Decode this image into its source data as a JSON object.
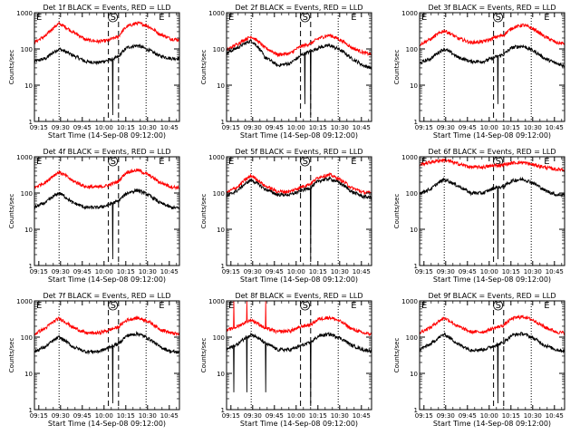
{
  "figure": {
    "y_label": "Counts/sec",
    "x_label": "Start Time (14-Sep-08 09:12:00)",
    "x_ticks": [
      "09:15",
      "09:30",
      "09:45",
      "10:00",
      "10:15",
      "10:30",
      "10:45"
    ],
    "y_ticks": [
      "1",
      "10",
      "100",
      "1000"
    ],
    "marker_labels": {
      "start": "E",
      "middle": "S",
      "end": "E"
    },
    "colors": {
      "events": "#000000",
      "lld": "#ff0000",
      "axes": "#000000"
    },
    "legend_text": "BLACK = Events, RED = LLD"
  },
  "chart_data": [
    {
      "type": "line",
      "title": "Det 1f BLACK = Events, RED = LLD",
      "xlabel": "Start Time (14-Sep-08 09:12:00)",
      "ylabel": "Counts/sec",
      "x_unit": "minutes after 09:12:00",
      "xlim": [
        0,
        100
      ],
      "ylim": [
        1,
        1000
      ],
      "y_scale": "log",
      "vlines_dotted": [
        17,
        77
      ],
      "vlines_dashed": [
        51,
        58
      ],
      "series": [
        {
          "name": "Events",
          "color": "#000000",
          "x": [
            0,
            8,
            17,
            26,
            35,
            44,
            50,
            52,
            58,
            64,
            71,
            77,
            86,
            94,
            100
          ],
          "y": [
            45,
            55,
            100,
            68,
            45,
            42,
            48,
            50,
            60,
            110,
            125,
            100,
            65,
            55,
            55
          ]
        },
        {
          "name": "LLD",
          "color": "#ff0000",
          "x": [
            0,
            8,
            17,
            26,
            35,
            44,
            50,
            52,
            58,
            64,
            71,
            77,
            86,
            94,
            100
          ],
          "y": [
            150,
            230,
            500,
            300,
            180,
            160,
            170,
            180,
            220,
            420,
            520,
            450,
            260,
            190,
            180
          ]
        }
      ],
      "dips": [
        {
          "series": "Events",
          "x": 54,
          "y": 1.5
        }
      ]
    },
    {
      "type": "line",
      "title": "Det 2f BLACK = Events, RED = LLD",
      "xlabel": "Start Time (14-Sep-08 09:12:00)",
      "ylabel": "Counts/sec",
      "x_unit": "minutes after 09:12:00",
      "xlim": [
        0,
        100
      ],
      "ylim": [
        1,
        1000
      ],
      "y_scale": "log",
      "vlines_dotted": [
        17,
        77
      ],
      "vlines_dashed": [
        51,
        58
      ],
      "series": [
        {
          "name": "Events",
          "color": "#000000",
          "x": [
            0,
            8,
            17,
            26,
            35,
            44,
            50,
            52,
            58,
            64,
            71,
            77,
            86,
            94,
            100
          ],
          "y": [
            75,
            110,
            170,
            60,
            35,
            40,
            60,
            70,
            85,
            110,
            125,
            100,
            55,
            35,
            30
          ]
        },
        {
          "name": "LLD",
          "color": "#ff0000",
          "x": [
            0,
            8,
            17,
            26,
            35,
            44,
            50,
            52,
            58,
            64,
            71,
            77,
            86,
            94,
            100
          ],
          "y": [
            90,
            140,
            220,
            110,
            70,
            75,
            110,
            120,
            140,
            200,
            240,
            190,
            110,
            80,
            70
          ]
        }
      ],
      "dips": [
        {
          "series": "Events",
          "x": 54,
          "y": 3
        },
        {
          "series": "Events",
          "x": 58,
          "y": 1.5
        }
      ]
    },
    {
      "type": "line",
      "title": "Det 3f BLACK = Events, RED = LLD",
      "xlabel": "Start Time (14-Sep-08 09:12:00)",
      "ylabel": "Counts/sec",
      "x_unit": "minutes after 09:12:00",
      "xlim": [
        0,
        100
      ],
      "ylim": [
        1,
        1000
      ],
      "y_scale": "log",
      "vlines_dotted": [
        17,
        77
      ],
      "vlines_dashed": [
        51,
        58
      ],
      "series": [
        {
          "name": "Events",
          "color": "#000000",
          "x": [
            0,
            8,
            17,
            26,
            35,
            44,
            50,
            52,
            58,
            64,
            71,
            77,
            86,
            94,
            100
          ],
          "y": [
            40,
            55,
            100,
            60,
            45,
            45,
            55,
            60,
            70,
            110,
            120,
            95,
            55,
            40,
            35
          ]
        },
        {
          "name": "LLD",
          "color": "#ff0000",
          "x": [
            0,
            8,
            17,
            26,
            35,
            44,
            50,
            52,
            58,
            64,
            71,
            77,
            86,
            94,
            100
          ],
          "y": [
            130,
            190,
            320,
            200,
            150,
            160,
            190,
            210,
            240,
            380,
            460,
            380,
            220,
            150,
            140
          ]
        }
      ],
      "dips": [
        {
          "series": "Events",
          "x": 54,
          "y": 3
        }
      ]
    },
    {
      "type": "line",
      "title": "Det 4f BLACK = Events, RED = LLD",
      "xlabel": "Start Time (14-Sep-08 09:12:00)",
      "ylabel": "Counts/sec",
      "x_unit": "minutes after 09:12:00",
      "xlim": [
        0,
        100
      ],
      "ylim": [
        1,
        1000
      ],
      "y_scale": "log",
      "vlines_dotted": [
        17,
        77
      ],
      "vlines_dashed": [
        51,
        58
      ],
      "series": [
        {
          "name": "Events",
          "color": "#000000",
          "x": [
            0,
            8,
            17,
            26,
            35,
            44,
            50,
            52,
            58,
            64,
            71,
            77,
            86,
            94,
            100
          ],
          "y": [
            40,
            55,
            100,
            55,
            40,
            40,
            45,
            50,
            60,
            100,
            120,
            95,
            55,
            40,
            38
          ]
        },
        {
          "name": "LLD",
          "color": "#ff0000",
          "x": [
            0,
            8,
            17,
            26,
            35,
            44,
            50,
            52,
            58,
            64,
            71,
            77,
            86,
            94,
            100
          ],
          "y": [
            140,
            200,
            380,
            220,
            150,
            145,
            160,
            170,
            210,
            380,
            430,
            340,
            200,
            150,
            140
          ]
        }
      ],
      "dips": [
        {
          "series": "Events",
          "x": 54,
          "y": 1.5
        }
      ]
    },
    {
      "type": "line",
      "title": "Det 5f BLACK = Events, RED = LLD",
      "xlabel": "Start Time (14-Sep-08 09:12:00)",
      "ylabel": "Counts/sec",
      "x_unit": "minutes after 09:12:00",
      "xlim": [
        0,
        100
      ],
      "ylim": [
        1,
        1000
      ],
      "y_scale": "log",
      "vlines_dotted": [
        17,
        77
      ],
      "vlines_dashed": [
        51,
        58
      ],
      "series": [
        {
          "name": "Events",
          "color": "#000000",
          "x": [
            0,
            8,
            17,
            26,
            35,
            44,
            50,
            52,
            58,
            64,
            71,
            77,
            86,
            94,
            100
          ],
          "y": [
            80,
            120,
            230,
            130,
            90,
            90,
            110,
            120,
            140,
            220,
            250,
            200,
            110,
            80,
            75
          ]
        },
        {
          "name": "LLD",
          "color": "#ff0000",
          "x": [
            0,
            8,
            17,
            26,
            35,
            44,
            50,
            52,
            58,
            64,
            71,
            77,
            86,
            94,
            100
          ],
          "y": [
            100,
            150,
            300,
            160,
            110,
            110,
            140,
            150,
            180,
            280,
            320,
            250,
            140,
            105,
            100
          ]
        }
      ],
      "dips": [
        {
          "series": "Events",
          "x": 58,
          "y": 1.5
        }
      ]
    },
    {
      "type": "line",
      "title": "Det 6f BLACK = Events, RED = LLD",
      "xlabel": "Start Time (14-Sep-08 09:12:00)",
      "ylabel": "Counts/sec",
      "x_unit": "minutes after 09:12:00",
      "xlim": [
        0,
        100
      ],
      "ylim": [
        1,
        1000
      ],
      "y_scale": "log",
      "vlines_dotted": [
        17,
        77
      ],
      "vlines_dashed": [
        51,
        58
      ],
      "series": [
        {
          "name": "Events",
          "color": "#000000",
          "x": [
            0,
            8,
            17,
            26,
            35,
            44,
            50,
            52,
            58,
            64,
            71,
            77,
            86,
            94,
            100
          ],
          "y": [
            100,
            130,
            240,
            160,
            100,
            100,
            130,
            140,
            150,
            220,
            240,
            200,
            120,
            90,
            90
          ]
        },
        {
          "name": "LLD",
          "color": "#ff0000",
          "x": [
            0,
            8,
            17,
            26,
            35,
            44,
            50,
            52,
            58,
            64,
            71,
            77,
            86,
            94,
            100
          ],
          "y": [
            600,
            720,
            820,
            650,
            520,
            520,
            560,
            580,
            600,
            680,
            700,
            620,
            520,
            450,
            450
          ]
        }
      ],
      "dips": [
        {
          "series": "Events",
          "x": 54,
          "y": 1.5
        }
      ]
    },
    {
      "type": "line",
      "title": "Det 7f BLACK = Events, RED = LLD",
      "xlabel": "Start Time (14-Sep-08 09:12:00)",
      "ylabel": "Counts/sec",
      "x_unit": "minutes after 09:12:00",
      "xlim": [
        0,
        100
      ],
      "ylim": [
        1,
        1000
      ],
      "y_scale": "log",
      "vlines_dotted": [
        17,
        77
      ],
      "vlines_dashed": [
        51,
        58
      ],
      "series": [
        {
          "name": "Events",
          "color": "#000000",
          "x": [
            0,
            8,
            17,
            26,
            35,
            44,
            50,
            52,
            58,
            64,
            71,
            77,
            86,
            94,
            100
          ],
          "y": [
            40,
            55,
            100,
            55,
            40,
            40,
            48,
            55,
            65,
            110,
            125,
            100,
            55,
            40,
            38
          ]
        },
        {
          "name": "LLD",
          "color": "#ff0000",
          "x": [
            0,
            8,
            17,
            26,
            35,
            44,
            50,
            52,
            58,
            64,
            71,
            77,
            86,
            94,
            100
          ],
          "y": [
            120,
            180,
            330,
            190,
            130,
            130,
            150,
            160,
            190,
            300,
            340,
            290,
            170,
            130,
            120
          ]
        }
      ],
      "dips": [
        {
          "series": "Events",
          "x": 54,
          "y": 1.5
        }
      ]
    },
    {
      "type": "line",
      "title": "Det 8f BLACK = Events, RED = LLD",
      "xlabel": "Start Time (14-Sep-08 09:12:00)",
      "ylabel": "Counts/sec",
      "x_unit": "minutes after 09:12:00",
      "xlim": [
        0,
        100
      ],
      "ylim": [
        1,
        1000
      ],
      "y_scale": "log",
      "vlines_dotted": [
        17,
        77
      ],
      "vlines_dashed": [
        51,
        58
      ],
      "series": [
        {
          "name": "Events",
          "color": "#000000",
          "x": [
            0,
            8,
            17,
            26,
            35,
            44,
            50,
            52,
            58,
            64,
            71,
            77,
            86,
            94,
            100
          ],
          "y": [
            45,
            65,
            120,
            70,
            45,
            45,
            55,
            60,
            70,
            110,
            120,
            100,
            60,
            45,
            42
          ]
        },
        {
          "name": "LLD",
          "color": "#ff0000",
          "x": [
            0,
            8,
            17,
            26,
            35,
            44,
            50,
            52,
            58,
            64,
            71,
            77,
            86,
            94,
            100
          ],
          "y": [
            150,
            200,
            300,
            180,
            140,
            150,
            180,
            200,
            220,
            320,
            350,
            290,
            170,
            130,
            120
          ]
        }
      ],
      "dips": [
        {
          "series": "Events",
          "x": 5,
          "y": 3
        },
        {
          "series": "Events",
          "x": 14,
          "y": 3
        },
        {
          "series": "Events",
          "x": 27,
          "y": 3
        },
        {
          "series": "Events",
          "x": 58,
          "y": 1.5
        }
      ],
      "spikes": [
        {
          "series": "LLD",
          "x": 5,
          "y": 1000
        },
        {
          "series": "LLD",
          "x": 14,
          "y": 1000
        },
        {
          "series": "LLD",
          "x": 27,
          "y": 1000
        }
      ]
    },
    {
      "type": "line",
      "title": "Det 9f BLACK = Events, RED = LLD",
      "xlabel": "Start Time (14-Sep-08 09:12:00)",
      "ylabel": "Counts/sec",
      "x_unit": "minutes after 09:12:00",
      "xlim": [
        0,
        100
      ],
      "ylim": [
        1,
        1000
      ],
      "y_scale": "log",
      "vlines_dotted": [
        17,
        77
      ],
      "vlines_dashed": [
        51,
        58
      ],
      "series": [
        {
          "name": "Events",
          "color": "#000000",
          "x": [
            0,
            8,
            17,
            26,
            35,
            44,
            50,
            52,
            58,
            64,
            71,
            77,
            86,
            94,
            100
          ],
          "y": [
            45,
            65,
            120,
            65,
            45,
            45,
            55,
            60,
            70,
            115,
            125,
            100,
            60,
            45,
            42
          ]
        },
        {
          "name": "LLD",
          "color": "#ff0000",
          "x": [
            0,
            8,
            17,
            26,
            35,
            44,
            50,
            52,
            58,
            64,
            71,
            77,
            86,
            94,
            100
          ],
          "y": [
            130,
            190,
            340,
            200,
            140,
            140,
            170,
            180,
            210,
            330,
            370,
            310,
            190,
            140,
            130
          ]
        }
      ],
      "dips": [
        {
          "series": "Events",
          "x": 54,
          "y": 1.5
        }
      ]
    }
  ]
}
